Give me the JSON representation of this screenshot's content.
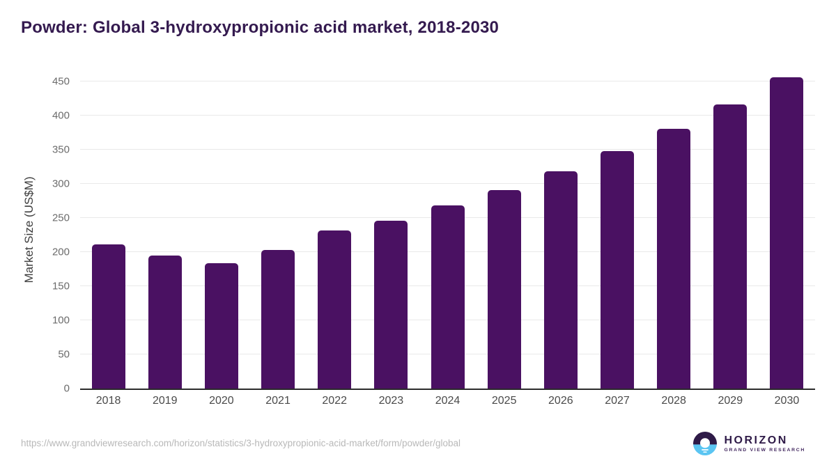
{
  "title": "Powder: Global 3-hydroxypropionic acid market, 2018-2030",
  "chart_data": {
    "type": "bar",
    "title": "Powder: Global 3-hydroxypropionic acid market, 2018-2030",
    "categories": [
      "2018",
      "2019",
      "2020",
      "2021",
      "2022",
      "2023",
      "2024",
      "2025",
      "2026",
      "2027",
      "2028",
      "2029",
      "2030"
    ],
    "values": [
      211,
      195,
      184,
      203,
      231,
      246,
      268,
      291,
      318,
      348,
      380,
      416,
      456
    ],
    "xlabel": "",
    "ylabel": "Market Size (US$M)",
    "ylim": [
      0,
      465
    ],
    "yticks": [
      0,
      50,
      100,
      150,
      200,
      250,
      300,
      350,
      400,
      450
    ],
    "bar_color": "#4a1162",
    "grid": true,
    "legend": false
  },
  "footer": {
    "source_url": "https://www.grandviewresearch.com/horizon/statistics/3-hydroxypropionic-acid-market/form/powder/global",
    "logo": {
      "name": "HORIZON",
      "subtitle": "GRAND VIEW RESEARCH"
    }
  },
  "colors": {
    "title_text": "#341a4f",
    "bar": "#4a1162",
    "axis_line": "#2b2b2b",
    "gridline": "#e9e9e9",
    "y_tick_text": "#6b6b6b",
    "x_tick_text": "#4a4a4a",
    "source_url_text": "#b8b8b8",
    "logo_dark_purple": "#2e1a47",
    "logo_light_blue": "#5bc5f2"
  }
}
